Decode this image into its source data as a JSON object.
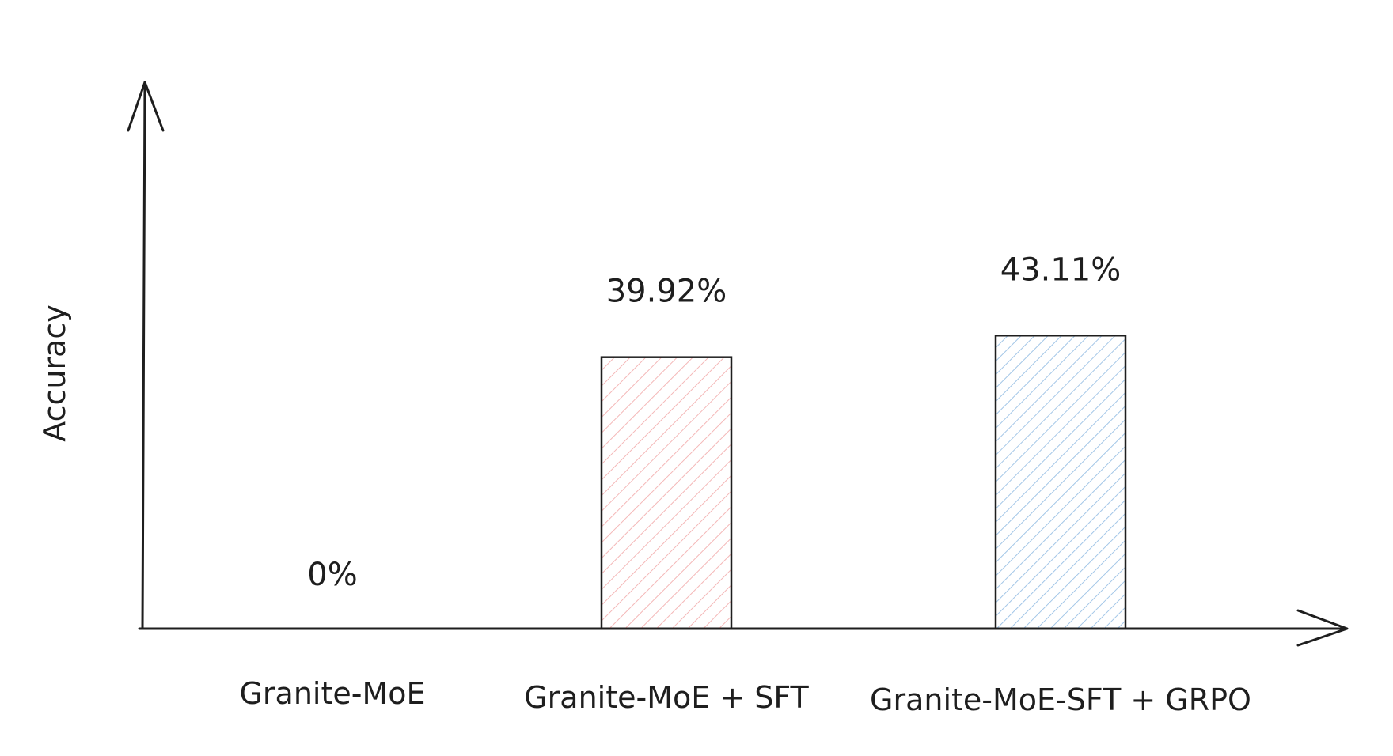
{
  "chart_data": {
    "type": "bar",
    "title": "",
    "xlabel": "",
    "ylabel": "Accuracy",
    "categories": [
      "Granite-MoE",
      "Granite-MoE + SFT",
      "Granite-MoE-SFT + GRPO"
    ],
    "values": [
      0,
      39.92,
      43.11
    ],
    "value_labels": [
      "0%",
      "39.92%",
      "43.11%"
    ],
    "bar_colors": [
      "#e03131",
      "#e03131",
      "#1971c2"
    ],
    "bar_fill": "hachure",
    "grid": false,
    "legend": "none"
  }
}
